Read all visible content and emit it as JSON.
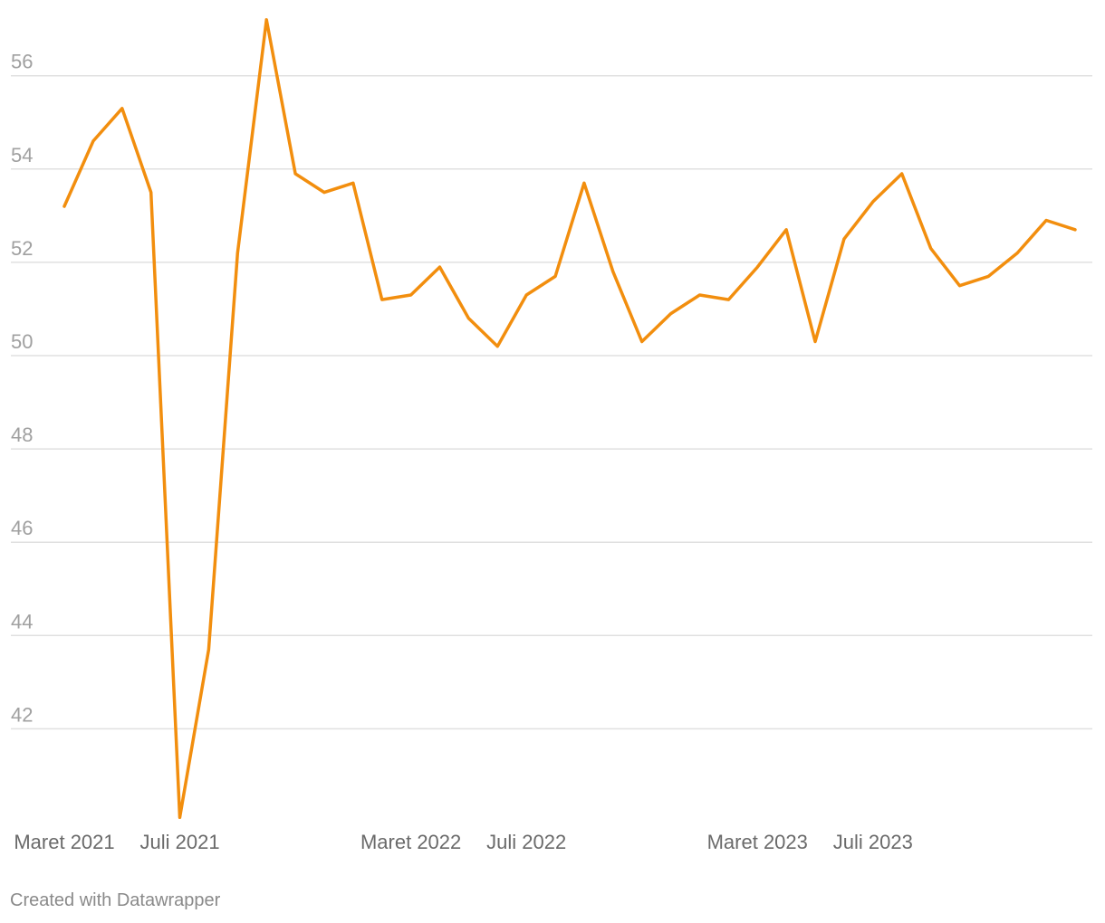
{
  "chart_data": {
    "type": "line",
    "x": [
      "Maret 2021",
      "April 2021",
      "Mei 2021",
      "Juni 2021",
      "Juli 2021",
      "Agustus 2021",
      "September 2021",
      "Oktober 2021",
      "November 2021",
      "Desember 2021",
      "Januari 2022",
      "Februari 2022",
      "Maret 2022",
      "April 2022",
      "Mei 2022",
      "Juni 2022",
      "Juli 2022",
      "Agustus 2022",
      "September 2022",
      "Oktober 2022",
      "November 2022",
      "Desember 2022",
      "Januari 2023",
      "Februari 2023",
      "Maret 2023",
      "April 2023",
      "Mei 2023",
      "Juni 2023",
      "Juli 2023",
      "Agustus 2023",
      "September 2023",
      "Oktober 2023",
      "November 2023",
      "Desember 2023",
      "Januari 2024",
      "Februari 2024"
    ],
    "series": [
      {
        "values": [
          53.2,
          54.6,
          55.3,
          53.5,
          40.1,
          43.7,
          52.2,
          57.2,
          53.9,
          53.5,
          53.7,
          51.2,
          51.3,
          51.9,
          50.8,
          50.2,
          51.3,
          51.7,
          53.7,
          51.8,
          50.3,
          50.9,
          51.3,
          51.2,
          51.9,
          52.7,
          50.3,
          52.5,
          53.3,
          53.9,
          52.3,
          51.5,
          51.7,
          52.2,
          52.9,
          52.7
        ]
      }
    ],
    "x_tick_labels": [
      "Maret 2021",
      "Juli 2021",
      "Maret 2022",
      "Juli 2022",
      "Maret 2023",
      "Juli 2023"
    ],
    "x_tick_indices": [
      0,
      4,
      12,
      16,
      24,
      28
    ],
    "y_ticks": [
      42,
      44,
      46,
      48,
      50,
      52,
      54,
      56
    ],
    "ylim": [
      40,
      57.5
    ],
    "title": "",
    "xlabel": "",
    "ylabel": "",
    "grid": true,
    "line_color": "#f28e0e"
  },
  "footer": {
    "credit": "Created with Datawrapper"
  }
}
